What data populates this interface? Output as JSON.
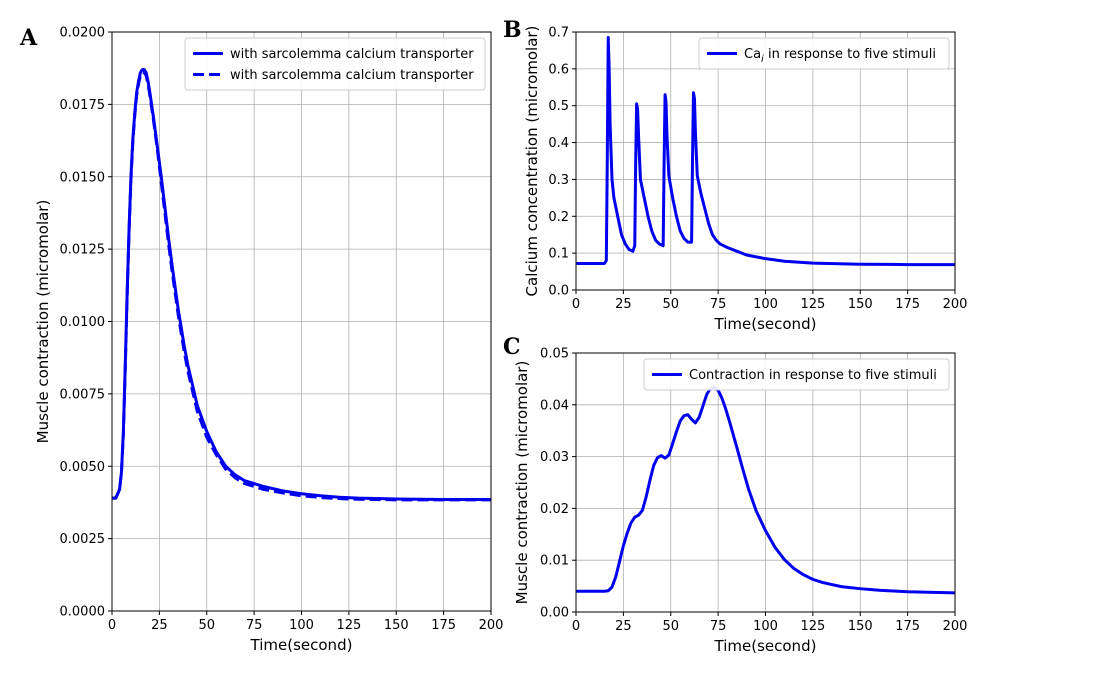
{
  "figure": {
    "panels": [
      "A",
      "B",
      "C"
    ]
  },
  "chart_data": [
    {
      "panel": "A",
      "type": "line",
      "xlabel": "Time(second)",
      "ylabel": "Muscle contraction (micromolar)",
      "xlim": [
        0,
        200
      ],
      "ylim": [
        0,
        0.02
      ],
      "xticks": [
        0,
        25,
        50,
        75,
        100,
        125,
        150,
        175,
        200
      ],
      "yticks": [
        0.0,
        0.0025,
        0.005,
        0.0075,
        0.01,
        0.0125,
        0.015,
        0.0175,
        0.02
      ],
      "ytick_labels": [
        "0.0000",
        "0.0025",
        "0.0050",
        "0.0075",
        "0.0100",
        "0.0125",
        "0.0150",
        "0.0175",
        "0.0200"
      ],
      "grid": true,
      "legend_position": "top-right",
      "series": [
        {
          "name": "with sarcolemma calcium transporter",
          "color": "#0000ee",
          "style": "solid",
          "x": [
            0,
            2,
            4,
            5,
            6,
            7,
            8,
            9,
            10,
            11,
            12,
            13,
            14,
            15,
            16,
            17,
            18,
            19,
            20,
            22,
            24,
            26,
            28,
            30,
            32,
            35,
            38,
            40,
            45,
            50,
            55,
            60,
            65,
            70,
            75,
            80,
            90,
            100,
            110,
            120,
            130,
            150,
            175,
            200
          ],
          "values": [
            0.0039,
            0.0039,
            0.0042,
            0.0048,
            0.0062,
            0.0085,
            0.011,
            0.0132,
            0.015,
            0.0163,
            0.0172,
            0.0179,
            0.0183,
            0.0186,
            0.0187,
            0.0187,
            0.0186,
            0.0183,
            0.0179,
            0.017,
            0.016,
            0.015,
            0.0139,
            0.0128,
            0.0118,
            0.0104,
            0.0092,
            0.0085,
            0.0071,
            0.0062,
            0.0055,
            0.005,
            0.0047,
            0.0045,
            0.0044,
            0.0043,
            0.00415,
            0.00405,
            0.00398,
            0.00393,
            0.0039,
            0.00387,
            0.00385,
            0.00385
          ]
        },
        {
          "name": "with sarcolemma calcium transporter",
          "color": "#0000ee",
          "style": "dashed",
          "x": [
            0,
            2,
            4,
            5,
            6,
            7,
            8,
            9,
            10,
            11,
            12,
            13,
            14,
            15,
            16,
            17,
            18,
            19,
            20,
            22,
            24,
            26,
            28,
            30,
            32,
            35,
            38,
            40,
            45,
            50,
            55,
            60,
            65,
            70,
            75,
            80,
            90,
            100,
            110,
            120,
            130,
            150,
            175,
            200
          ],
          "values": [
            0.0039,
            0.0039,
            0.0042,
            0.0048,
            0.0061,
            0.0084,
            0.0109,
            0.0131,
            0.0149,
            0.0162,
            0.0171,
            0.0178,
            0.0182,
            0.0185,
            0.0186,
            0.0186,
            0.0185,
            0.0182,
            0.0178,
            0.0169,
            0.0159,
            0.0148,
            0.0137,
            0.0126,
            0.0116,
            0.0102,
            0.009,
            0.0083,
            0.0069,
            0.006,
            0.0054,
            0.0049,
            0.0046,
            0.0044,
            0.0043,
            0.0042,
            0.00408,
            0.00398,
            0.00392,
            0.00388,
            0.00386,
            0.00384,
            0.00384,
            0.00384
          ]
        }
      ]
    },
    {
      "panel": "B",
      "type": "line",
      "xlabel": "Time(second)",
      "ylabel": "Calcium concentration (micromolar)",
      "xlim": [
        0,
        200
      ],
      "ylim": [
        0,
        0.7
      ],
      "xticks": [
        0,
        25,
        50,
        75,
        100,
        125,
        150,
        175,
        200
      ],
      "yticks": [
        0.0,
        0.1,
        0.2,
        0.3,
        0.4,
        0.5,
        0.6,
        0.7
      ],
      "ytick_labels": [
        "0.0",
        "0.1",
        "0.2",
        "0.3",
        "0.4",
        "0.5",
        "0.6",
        "0.7"
      ],
      "grid": true,
      "legend_position": "top-right",
      "series": [
        {
          "name": "Ca",
          "name_subscript": "i",
          "name_suffix": " in response to five stimuli",
          "color": "#0000ee",
          "style": "solid",
          "x": [
            0,
            15,
            16,
            16.5,
            17,
            17.5,
            18,
            19,
            20,
            22,
            24,
            26,
            28,
            30,
            31,
            31.5,
            32,
            32.5,
            33,
            34,
            36,
            38,
            40,
            42,
            44,
            46,
            46.5,
            47,
            47.5,
            48,
            49,
            51,
            53,
            55,
            57,
            59,
            61,
            61.5,
            62,
            62.5,
            63,
            64,
            66,
            68,
            70,
            72,
            74,
            76,
            80,
            85,
            90,
            100,
            110,
            125,
            150,
            175,
            200
          ],
          "values": [
            0.072,
            0.072,
            0.08,
            0.35,
            0.685,
            0.6,
            0.45,
            0.3,
            0.25,
            0.2,
            0.15,
            0.125,
            0.11,
            0.105,
            0.12,
            0.35,
            0.505,
            0.49,
            0.42,
            0.3,
            0.25,
            0.2,
            0.16,
            0.135,
            0.125,
            0.12,
            0.35,
            0.53,
            0.51,
            0.42,
            0.31,
            0.25,
            0.2,
            0.16,
            0.14,
            0.13,
            0.13,
            0.36,
            0.535,
            0.52,
            0.43,
            0.31,
            0.26,
            0.22,
            0.18,
            0.15,
            0.135,
            0.125,
            0.115,
            0.105,
            0.095,
            0.085,
            0.078,
            0.073,
            0.07,
            0.069,
            0.069
          ]
        }
      ]
    },
    {
      "panel": "C",
      "type": "line",
      "xlabel": "Time(second)",
      "ylabel": "Muscle contraction (micromolar)",
      "xlim": [
        0,
        200
      ],
      "ylim": [
        0,
        0.05
      ],
      "xticks": [
        0,
        25,
        50,
        75,
        100,
        125,
        150,
        175,
        200
      ],
      "yticks": [
        0.0,
        0.01,
        0.02,
        0.03,
        0.04,
        0.05
      ],
      "ytick_labels": [
        "0.00",
        "0.01",
        "0.02",
        "0.03",
        "0.04",
        "0.05"
      ],
      "grid": true,
      "legend_position": "top-right",
      "series": [
        {
          "name": "Contraction in response to five stimuli",
          "color": "#0000ee",
          "style": "solid",
          "x": [
            0,
            15,
            17,
            19,
            21,
            23,
            25,
            27,
            29,
            31,
            33,
            35,
            37,
            39,
            41,
            43,
            45,
            47,
            49,
            51,
            53,
            55,
            57,
            59,
            61,
            63,
            65,
            67,
            69,
            71,
            73,
            75,
            77,
            79,
            81,
            83,
            85,
            88,
            91,
            95,
            100,
            105,
            110,
            115,
            120,
            125,
            130,
            140,
            150,
            160,
            175,
            200
          ],
          "values": [
            0.004,
            0.004,
            0.0041,
            0.0048,
            0.0068,
            0.0098,
            0.0128,
            0.0152,
            0.0172,
            0.0183,
            0.0187,
            0.0196,
            0.0222,
            0.0254,
            0.0283,
            0.0298,
            0.0302,
            0.0297,
            0.0303,
            0.0325,
            0.0348,
            0.0369,
            0.0379,
            0.0381,
            0.0372,
            0.0365,
            0.0376,
            0.0398,
            0.042,
            0.0432,
            0.0434,
            0.0428,
            0.0413,
            0.0392,
            0.0368,
            0.0342,
            0.0316,
            0.0276,
            0.0238,
            0.0196,
            0.0157,
            0.0125,
            0.0101,
            0.0084,
            0.0072,
            0.0063,
            0.0057,
            0.0049,
            0.0045,
            0.0042,
            0.0039,
            0.0037
          ]
        }
      ]
    }
  ]
}
